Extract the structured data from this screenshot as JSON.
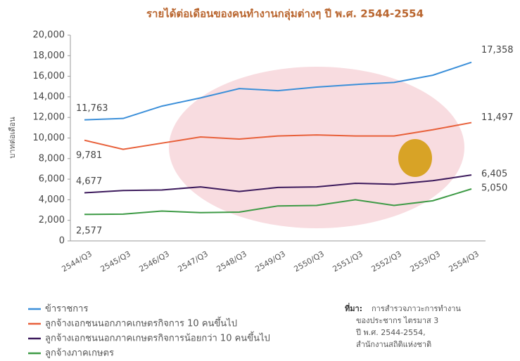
{
  "chart_data": {
    "type": "line",
    "title": "รายได้ต่อเดือนของคนทำงานกลุ่มต่างๆ ปี พ.ศ. 2544-2554",
    "y_label": "บาทต่อเดือน",
    "categories": [
      "2544/Q3",
      "2545/Q3",
      "2546/Q3",
      "2547/Q3",
      "2548/Q3",
      "2549/Q3",
      "2550/Q3",
      "2551/Q3",
      "2552/Q3",
      "2553/Q3",
      "2554/Q3"
    ],
    "series": [
      {
        "name": "ข้าราชการ",
        "color": "#3b8fd9",
        "values": [
          11763,
          11900,
          13100,
          13900,
          14800,
          14600,
          14950,
          15200,
          15400,
          16100,
          17358
        ],
        "value_labels": [
          "11,763",
          null,
          null,
          null,
          null,
          null,
          null,
          null,
          null,
          null,
          "17,358"
        ]
      },
      {
        "name": "ลูกจ้างเอกชนนอกภาคเกษตรกิจการ 10 คนขึ้นไป",
        "color": "#e8603a",
        "values": [
          9781,
          8900,
          9500,
          10100,
          9900,
          10200,
          10300,
          10200,
          10200,
          10800,
          11497
        ],
        "value_labels": [
          "9,781",
          null,
          null,
          null,
          null,
          null,
          null,
          null,
          null,
          null,
          "11,497"
        ]
      },
      {
        "name": "ลูกจ้างเอกชนนอกภาคเกษตรกิจการน้อยกว่า 10 คนขึ้นไป",
        "color": "#3c1a5c",
        "values": [
          4677,
          4900,
          4950,
          5250,
          4800,
          5200,
          5250,
          5600,
          5500,
          5850,
          6405
        ],
        "value_labels": [
          "4,677",
          null,
          null,
          null,
          null,
          null,
          null,
          null,
          null,
          null,
          "6,405"
        ]
      },
      {
        "name": "ลูกจ้างภาคเกษตร",
        "color": "#3d9a45",
        "values": [
          2577,
          2600,
          2900,
          2750,
          2800,
          3400,
          3450,
          4000,
          3450,
          3900,
          5050
        ],
        "value_labels": [
          "2,577",
          null,
          null,
          null,
          null,
          null,
          null,
          null,
          null,
          null,
          "5,050"
        ]
      }
    ],
    "ylim": [
      0,
      20000
    ],
    "yticks": [
      0,
      {
        "value": 2000,
        "label": "2,000"
      },
      {
        "value": 4000,
        "label": "4,000"
      },
      {
        "value": 6000,
        "label": "6,000"
      },
      {
        "value": 8000,
        "label": "8,000"
      },
      {
        "value": 10000,
        "label": "10,000"
      },
      {
        "value": 12000,
        "label": "12,000"
      },
      {
        "value": 14000,
        "label": "14,000"
      },
      {
        "value": 16000,
        "label": "16,000"
      },
      {
        "value": 18000,
        "label": "18,000"
      },
      {
        "value": 20000,
        "label": "20,000"
      }
    ],
    "grid": false,
    "source": {
      "label": "ที่มา:",
      "lines": [
        "การสำรวจภาวะการทำงาน",
        "ของประชากร ไตรมาส 3",
        "ปี พ.ศ. 2544-2554,",
        "สำนักงานสถิติแห่งชาติ"
      ]
    }
  }
}
